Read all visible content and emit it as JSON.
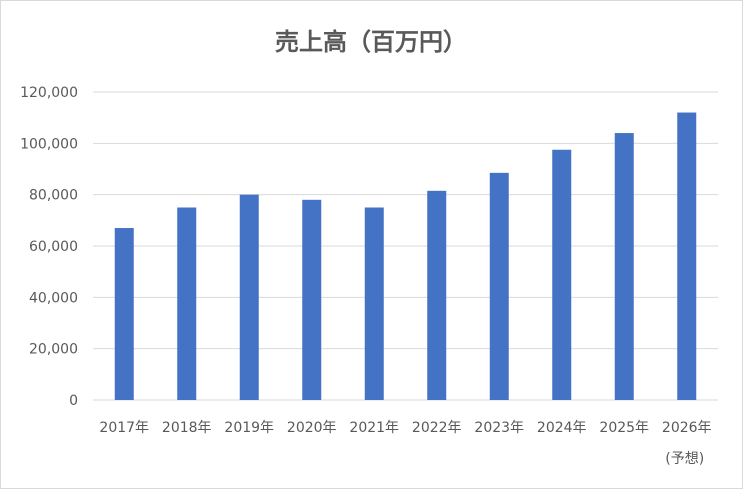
{
  "chart_data": {
    "type": "bar",
    "title": "売上高（百万円）",
    "categories": [
      "2017年",
      "2018年",
      "2019年",
      "2020年",
      "2021年",
      "2022年",
      "2023年",
      "2024年",
      "2025年",
      "2026年"
    ],
    "category_sublabels": [
      "",
      "",
      "",
      "",
      "",
      "",
      "",
      "",
      "",
      "(予想)"
    ],
    "values": [
      67000,
      75000,
      80000,
      78000,
      75000,
      81500,
      88500,
      97500,
      104000,
      112000
    ],
    "ylim": [
      0,
      120000
    ],
    "yticks": [
      0,
      20000,
      40000,
      60000,
      80000,
      100000,
      120000
    ],
    "ytick_labels": [
      "0",
      "20,000",
      "40,000",
      "60,000",
      "80,000",
      "100,000",
      "120,000"
    ],
    "xlabel": "",
    "ylabel": "",
    "grid": true,
    "legend": "none",
    "bar_color": "#4472c4",
    "grid_color": "#d9d9d9"
  }
}
